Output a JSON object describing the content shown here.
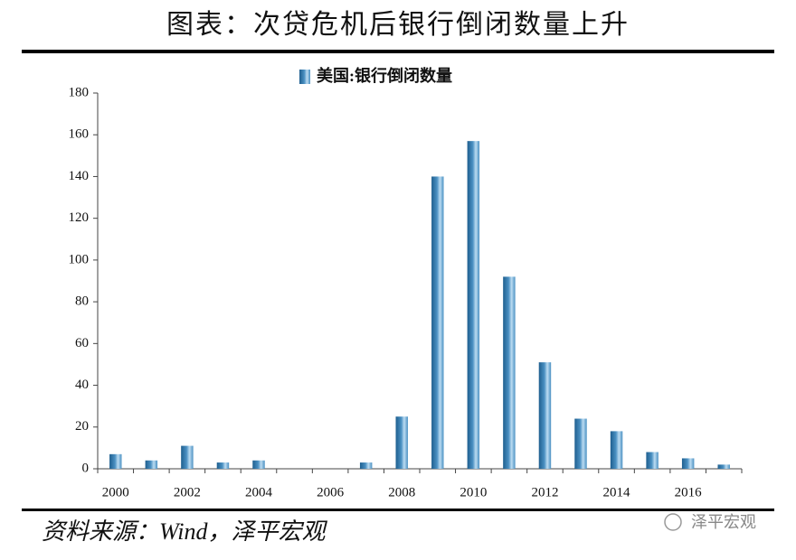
{
  "chart_data": {
    "type": "bar",
    "title": "图表：次贷危机后银行倒闭数量上升",
    "source": "资料来源：Wind，泽平宏观",
    "watermark": "泽平宏观",
    "legend": "top",
    "series": [
      {
        "name": "美国:银行倒闭数量",
        "color": "#4a90c2",
        "values": [
          7,
          4,
          11,
          3,
          4,
          0,
          0,
          3,
          25,
          140,
          157,
          92,
          51,
          24,
          18,
          8,
          5,
          2
        ]
      }
    ],
    "categories": [
      "2000",
      null,
      "2002",
      null,
      "2004",
      null,
      "2006",
      null,
      "2008",
      null,
      "2010",
      null,
      "2012",
      null,
      "2014",
      null,
      "2016",
      null
    ],
    "ylim": [
      0,
      180
    ],
    "yticks": [
      0,
      20,
      40,
      60,
      80,
      100,
      120,
      140,
      160,
      180
    ]
  }
}
